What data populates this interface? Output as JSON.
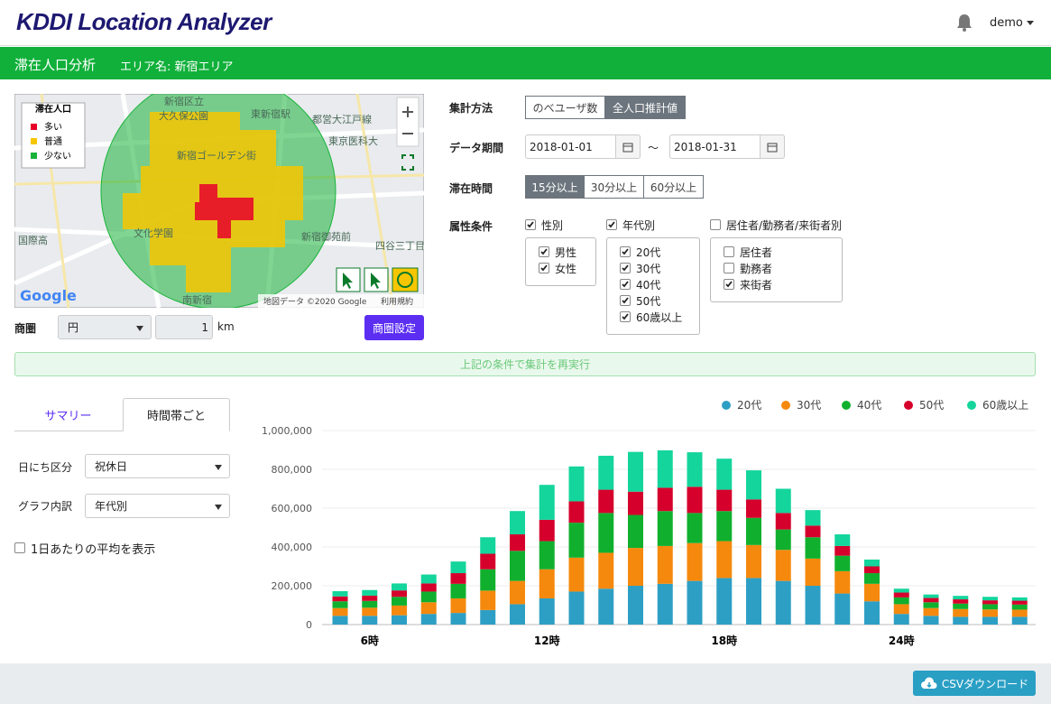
{
  "header": {
    "logo": "KDDI Location Analyzer",
    "user": "demo"
  },
  "nav": {
    "title": "滞在人口分析",
    "area": "エリア名: 新宿エリア"
  },
  "map": {
    "legend_title": "滞在人口",
    "legend": [
      {
        "label": "多い",
        "color": "#e8002a"
      },
      {
        "label": "普通",
        "color": "#f7c600"
      },
      {
        "label": "少ない",
        "color": "#19b33a"
      }
    ],
    "places": [
      "新宿区立",
      "大久保公園",
      "東新宿駅",
      "都営大江戸線",
      "東京医科大",
      "新宿ゴールデン街",
      "新宿御苑前",
      "四谷三丁目",
      "国際高",
      "文化学園",
      "南新宿"
    ],
    "logo": "Google",
    "copyright": "地図データ ©2020 Google",
    "terms": "利用規約"
  },
  "trade_area": {
    "label": "商圏",
    "shape": "円",
    "radius": "1",
    "unit": "km",
    "button": "商圏設定"
  },
  "form": {
    "method": {
      "label": "集計方法",
      "options": [
        "のべユーザ数",
        "全人口推計値"
      ],
      "selected": 1
    },
    "period": {
      "label": "データ期間",
      "from": "2018-01-01",
      "separator": "～",
      "to": "2018-01-31"
    },
    "stay": {
      "label": "滞在時間",
      "options": [
        "15分以上",
        "30分以上",
        "60分以上"
      ],
      "selected": 0
    },
    "attributes": {
      "label": "属性条件",
      "groups": [
        {
          "name": "性別",
          "checked": true,
          "items": [
            {
              "label": "男性",
              "checked": true
            },
            {
              "label": "女性",
              "checked": true
            }
          ]
        },
        {
          "name": "年代別",
          "checked": true,
          "items": [
            {
              "label": "20代",
              "checked": true
            },
            {
              "label": "30代",
              "checked": true
            },
            {
              "label": "40代",
              "checked": true
            },
            {
              "label": "50代",
              "checked": true
            },
            {
              "label": "60歳以上",
              "checked": true
            }
          ]
        },
        {
          "name": "居住者/勤務者/来街者別",
          "checked": false,
          "items": [
            {
              "label": "居住者",
              "checked": false
            },
            {
              "label": "勤務者",
              "checked": false
            },
            {
              "label": "来街者",
              "checked": true
            }
          ]
        }
      ]
    }
  },
  "rerun": "上記の条件で集計を再実行",
  "tabs": {
    "items": [
      "サマリー",
      "時間帯ごと"
    ],
    "selected": 1
  },
  "options": {
    "day_type": {
      "label": "日にち区分",
      "value": "祝休日"
    },
    "breakdown": {
      "label": "グラフ内訳",
      "value": "年代別"
    },
    "average": {
      "label": "1日あたりの平均を表示",
      "checked": false
    }
  },
  "footer": {
    "csv": "CSVダウンロード"
  },
  "chart_data": {
    "type": "bar",
    "stacked": true,
    "grid": true,
    "legend": "top-right",
    "categories": [
      null,
      "6時",
      null,
      null,
      null,
      null,
      null,
      "12時",
      null,
      null,
      null,
      null,
      null,
      "18時",
      null,
      null,
      null,
      null,
      null,
      "24時",
      null,
      null,
      null,
      null
    ],
    "series": [
      {
        "name": "20代",
        "color": "#2e9fc4",
        "values": [
          45,
          45,
          48,
          55,
          60,
          75,
          105,
          135,
          170,
          185,
          200,
          210,
          225,
          240,
          240,
          225,
          200,
          160,
          120,
          55,
          45,
          40,
          40,
          40
        ]
      },
      {
        "name": "30代",
        "color": "#f5890d",
        "values": [
          40,
          42,
          50,
          60,
          75,
          100,
          120,
          150,
          175,
          185,
          195,
          195,
          195,
          190,
          170,
          160,
          140,
          115,
          90,
          50,
          40,
          40,
          38,
          37
        ]
      },
      {
        "name": "40代",
        "color": "#10b02e",
        "values": [
          35,
          35,
          45,
          55,
          75,
          110,
          155,
          145,
          180,
          205,
          170,
          180,
          155,
          155,
          140,
          105,
          110,
          80,
          55,
          35,
          30,
          28,
          27,
          26
        ]
      },
      {
        "name": "50代",
        "color": "#d6002c",
        "values": [
          25,
          27,
          33,
          42,
          55,
          80,
          85,
          110,
          110,
          120,
          120,
          120,
          135,
          110,
          95,
          85,
          60,
          50,
          35,
          25,
          22,
          22,
          20,
          20
        ]
      },
      {
        "name": "60歳以上",
        "color": "#14d59c",
        "values": [
          27,
          29,
          36,
          46,
          60,
          85,
          120,
          180,
          180,
          175,
          205,
          193,
          178,
          160,
          150,
          125,
          80,
          60,
          35,
          20,
          18,
          18,
          18,
          17
        ]
      }
    ],
    "value_unit_note_free": null,
    "ylim": [
      0,
      1000000
    ],
    "yticks": [
      0,
      {
        "value": 200000,
        "label": "200,000"
      },
      {
        "value": 400000,
        "label": "400,000"
      },
      {
        "value": 600000,
        "label": "600,000"
      },
      {
        "value": 800000,
        "label": "800,000"
      },
      {
        "value": 1000000,
        "label": "1,000,000"
      }
    ],
    "scale": 1000
  }
}
